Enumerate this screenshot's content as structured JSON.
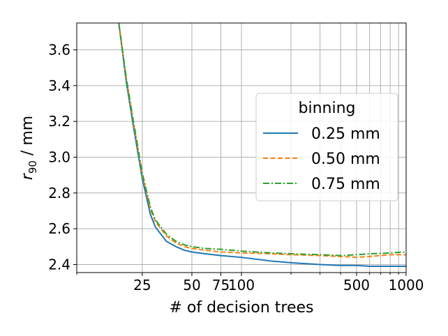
{
  "chart_data": {
    "type": "line",
    "xlabel": "# of decision trees",
    "ylabel_main": "r",
    "ylabel_sub": "90",
    "ylabel_unit": " / mm",
    "x_scale": "log",
    "xlim": [
      10,
      1000
    ],
    "ylim": [
      2.355,
      3.75
    ],
    "grid": true,
    "legend_position": "center-right",
    "legend_title": "binning",
    "x_major_ticks": [
      25,
      50,
      75,
      100,
      500,
      1000
    ],
    "x_major_tick_labels": [
      "25",
      "50",
      "75",
      "100",
      "500",
      "1000"
    ],
    "x_grid_ticks": [
      10,
      25,
      50,
      75,
      100,
      200,
      300,
      400,
      500,
      600,
      700,
      800,
      900,
      1000
    ],
    "y_ticks": [
      2.4,
      2.6,
      2.8,
      3.0,
      3.2,
      3.4,
      3.6
    ],
    "y_tick_labels": [
      "2.4",
      "2.6",
      "2.8",
      "3.0",
      "3.2",
      "3.4",
      "3.6"
    ],
    "series": [
      {
        "name": "0.25 mm",
        "color": "#1f77b4",
        "dash": "solid",
        "x": [
          18,
          20,
          22,
          25,
          28,
          30,
          35,
          40,
          45,
          50,
          60,
          75,
          100,
          150,
          200,
          300,
          400,
          500,
          600,
          700,
          800,
          900,
          1000
        ],
        "y": [
          3.75,
          3.42,
          3.18,
          2.88,
          2.68,
          2.61,
          2.53,
          2.5,
          2.48,
          2.47,
          2.46,
          2.45,
          2.44,
          2.42,
          2.41,
          2.4,
          2.395,
          2.395,
          2.39,
          2.39,
          2.39,
          2.39,
          2.39
        ]
      },
      {
        "name": "0.50 mm",
        "color": "#ff7f0e",
        "dash": "dashed",
        "x": [
          18,
          20,
          22,
          25,
          28,
          30,
          35,
          40,
          45,
          50,
          60,
          75,
          100,
          150,
          200,
          300,
          400,
          500,
          600,
          700,
          800,
          900,
          1000
        ],
        "y": [
          3.75,
          3.44,
          3.2,
          2.9,
          2.71,
          2.64,
          2.56,
          2.52,
          2.5,
          2.49,
          2.48,
          2.47,
          2.465,
          2.46,
          2.455,
          2.45,
          2.445,
          2.44,
          2.445,
          2.45,
          2.455,
          2.455,
          2.455
        ]
      },
      {
        "name": "0.75 mm",
        "color": "#2ca02c",
        "dash": "dashdot",
        "x": [
          18,
          20,
          22,
          25,
          28,
          30,
          35,
          40,
          45,
          50,
          60,
          75,
          100,
          150,
          200,
          300,
          400,
          500,
          600,
          700,
          800,
          900,
          1000
        ],
        "y": [
          3.75,
          3.44,
          3.21,
          2.91,
          2.72,
          2.65,
          2.57,
          2.53,
          2.51,
          2.5,
          2.49,
          2.485,
          2.475,
          2.465,
          2.46,
          2.455,
          2.45,
          2.455,
          2.46,
          2.462,
          2.465,
          2.468,
          2.47
        ]
      }
    ]
  }
}
